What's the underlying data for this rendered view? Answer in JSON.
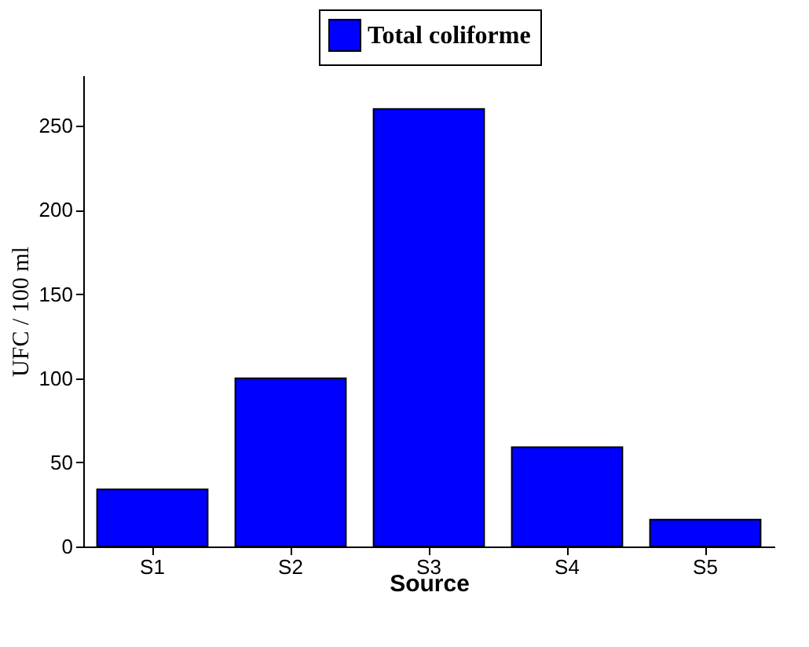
{
  "chart_data": {
    "type": "bar",
    "xlabel": "Source",
    "ylabel": "UFC / 100 ml",
    "categories": [
      "S1",
      "S2",
      "S3",
      "S4",
      "S5"
    ],
    "series": [
      {
        "name": "Total coliforme",
        "color": "#0000ff",
        "values": [
          34,
          100,
          260,
          59,
          16
        ]
      }
    ],
    "ylim": [
      0,
      280
    ],
    "yticks": [
      0,
      50,
      100,
      150,
      200,
      250
    ],
    "grid": false,
    "legend": "top"
  }
}
